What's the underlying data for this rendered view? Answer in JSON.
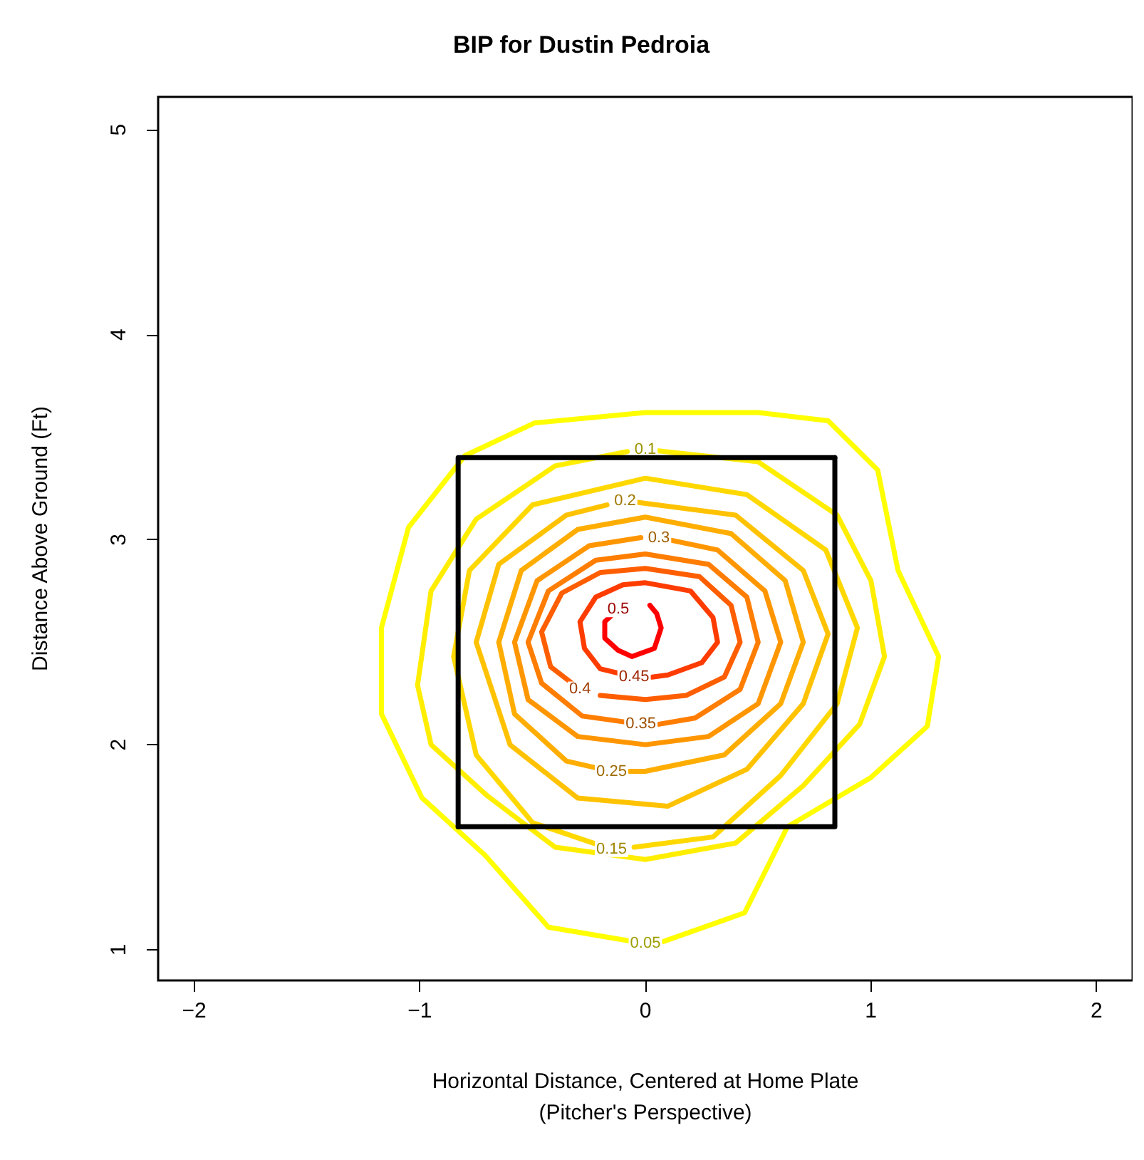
{
  "chart_data": {
    "type": "line",
    "title": "BIP for Dustin Pedroia",
    "xlabel": "Horizontal Distance, Centered at Home Plate\n(Pitcher's Perspective)",
    "ylabel": "Distance Above Ground (Ft)",
    "xlim": [
      -2.16,
      2.16
    ],
    "xticks": [
      -2,
      -1,
      0,
      1,
      2
    ],
    "ylim": [
      0.85,
      5.16
    ],
    "yticks": [
      1,
      2,
      3,
      4,
      5
    ],
    "grid": false,
    "legend": false,
    "marker": "none",
    "line_style": "solid",
    "series": [
      {
        "name": "0.05",
        "color": "#ffff00",
        "x": [
          0,
          -0.43,
          -0.71,
          -0.99,
          -1.17,
          -1.17,
          -1.05,
          -0.8,
          -0.49,
          0,
          0.5,
          0.81,
          1.03,
          1.12,
          1.3,
          1.25,
          1.0,
          0.63,
          0.44,
          0.08
        ],
        "values": [
          1.03,
          1.11,
          1.46,
          1.74,
          2.15,
          2.57,
          3.06,
          3.41,
          3.57,
          3.62,
          3.62,
          3.58,
          3.34,
          2.85,
          2.43,
          2.09,
          1.84,
          1.6,
          1.18,
          1.04
        ]
      },
      {
        "name": "0.1",
        "color": "#ffee00",
        "x": [
          0,
          0.5,
          0.85,
          1.0,
          1.06,
          0.95,
          0.7,
          0.4,
          0,
          -0.4,
          -0.7,
          -0.95,
          -1.01,
          -0.95,
          -0.75,
          -0.4,
          -0.08
        ],
        "values": [
          3.44,
          3.38,
          3.12,
          2.8,
          2.43,
          2.1,
          1.8,
          1.52,
          1.44,
          1.5,
          1.75,
          2.0,
          2.29,
          2.75,
          3.1,
          3.36,
          3.43
        ]
      },
      {
        "name": "0.15",
        "color": "#ffd800",
        "x": [
          -0.15,
          -0.5,
          -0.75,
          -0.85,
          -0.78,
          -0.5,
          0,
          0.45,
          0.8,
          0.94,
          0.85,
          0.6,
          0.3,
          -0.05
        ],
        "values": [
          1.49,
          1.62,
          1.95,
          2.43,
          2.85,
          3.17,
          3.3,
          3.22,
          2.95,
          2.57,
          2.2,
          1.85,
          1.55,
          1.5
        ]
      },
      {
        "name": "0.2",
        "color": "#ffc200",
        "x": [
          -0.09,
          0.4,
          0.7,
          0.81,
          0.7,
          0.45,
          0.1,
          -0.3,
          -0.6,
          -0.75,
          -0.65,
          -0.35,
          -0.17
        ],
        "values": [
          3.19,
          3.12,
          2.85,
          2.54,
          2.2,
          1.88,
          1.7,
          1.74,
          2.0,
          2.5,
          2.88,
          3.12,
          3.17
        ]
      },
      {
        "name": "0.25",
        "color": "#ffad00",
        "x": [
          -0.15,
          -0.35,
          -0.58,
          -0.65,
          -0.55,
          -0.3,
          0,
          0.38,
          0.62,
          0.7,
          0.6,
          0.35,
          0,
          -0.07
        ],
        "values": [
          1.87,
          1.92,
          2.15,
          2.5,
          2.85,
          3.05,
          3.11,
          3.03,
          2.8,
          2.5,
          2.2,
          1.95,
          1.87,
          1.87
        ]
      },
      {
        "name": "0.3",
        "color": "#ff9600",
        "x": [
          0.06,
          0.32,
          0.53,
          0.6,
          0.5,
          0.28,
          0,
          -0.3,
          -0.52,
          -0.58,
          -0.48,
          -0.25,
          -0.02
        ],
        "values": [
          3.01,
          2.95,
          2.75,
          2.5,
          2.2,
          2.04,
          2.0,
          2.04,
          2.22,
          2.5,
          2.8,
          2.97,
          3.01
        ]
      },
      {
        "name": "0.35",
        "color": "#ff7d00",
        "x": [
          -0.02,
          -0.28,
          -0.46,
          -0.52,
          -0.43,
          -0.22,
          0,
          0.28,
          0.45,
          0.5,
          0.42,
          0.22,
          0.06
        ],
        "values": [
          2.1,
          2.14,
          2.3,
          2.5,
          2.75,
          2.9,
          2.93,
          2.88,
          2.72,
          2.5,
          2.27,
          2.13,
          2.1
        ]
      },
      {
        "name": "0.4",
        "color": "#ff5e00",
        "x": [
          -0.29,
          -0.42,
          -0.46,
          -0.37,
          -0.2,
          0,
          0.24,
          0.38,
          0.42,
          0.35,
          0.18,
          0,
          -0.2
        ],
        "values": [
          2.27,
          2.38,
          2.55,
          2.74,
          2.84,
          2.86,
          2.82,
          2.68,
          2.5,
          2.33,
          2.24,
          2.22,
          2.24
        ]
      },
      {
        "name": "0.45",
        "color": "#ff3c00",
        "x": [
          -0.05,
          -0.2,
          -0.27,
          -0.29,
          -0.22,
          -0.1,
          0,
          0.2,
          0.3,
          0.32,
          0.25,
          0.1,
          0.03
        ],
        "values": [
          2.33,
          2.37,
          2.47,
          2.6,
          2.72,
          2.78,
          2.79,
          2.75,
          2.62,
          2.5,
          2.4,
          2.34,
          2.33
        ]
      },
      {
        "name": "0.5",
        "color": "#ff0000",
        "x": [
          -0.12,
          -0.18,
          -0.18,
          -0.12,
          -0.06,
          0.04,
          0.07,
          0.05,
          0.02
        ],
        "values": [
          2.66,
          2.6,
          2.52,
          2.46,
          2.43,
          2.47,
          2.57,
          2.64,
          2.68
        ]
      },
      {
        "color": "#000000",
        "x": [
          -0.83,
          0.84,
          0.84
        ],
        "values": [
          1.6,
          1.6,
          3.4
        ]
      },
      {
        "color": "#000000",
        "x": [
          0.84,
          -0.83,
          -0.83
        ],
        "values": [
          3.4,
          3.4,
          1.6
        ]
      }
    ]
  }
}
